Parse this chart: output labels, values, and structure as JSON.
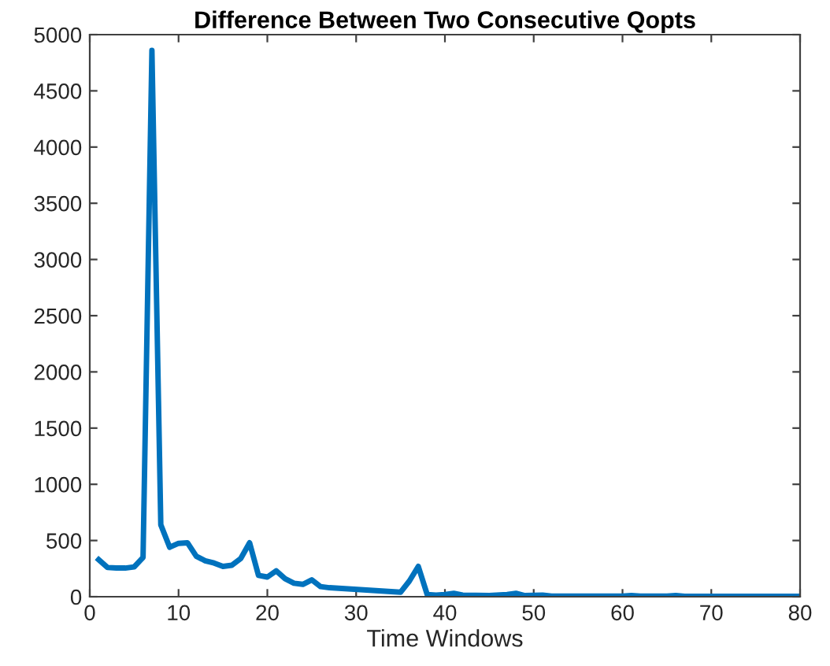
{
  "chart_data": {
    "type": "line",
    "title": "Difference Between Two Consecutive Qopts",
    "xlabel": "Time Windows",
    "series": [
      {
        "color": "#0072bd",
        "x": [
          1,
          2,
          3,
          4,
          5,
          6,
          7,
          8,
          9,
          10,
          11,
          12,
          13,
          14,
          15,
          16,
          17,
          18,
          19,
          20,
          21,
          22,
          23,
          24,
          25,
          26,
          27,
          35,
          36,
          37,
          38,
          39,
          40,
          41,
          42,
          45,
          47,
          48,
          49,
          51,
          52,
          60,
          61,
          62,
          65,
          66,
          67,
          80
        ],
        "values": [
          330,
          260,
          255,
          255,
          265,
          350,
          4860,
          640,
          440,
          475,
          480,
          360,
          320,
          300,
          270,
          280,
          340,
          480,
          190,
          175,
          230,
          160,
          120,
          110,
          150,
          90,
          80,
          40,
          140,
          270,
          20,
          15,
          20,
          30,
          15,
          10,
          20,
          30,
          10,
          15,
          5,
          5,
          10,
          5,
          5,
          10,
          3,
          3
        ]
      }
    ],
    "xlim": [
      0,
      80
    ],
    "xticks": [
      0,
      10,
      20,
      30,
      40,
      50,
      60,
      70,
      80
    ],
    "ylim": [
      0,
      5000
    ],
    "yticks": [
      0,
      500,
      1000,
      1500,
      2000,
      2500,
      3000,
      3500,
      4000,
      4500,
      5000
    ],
    "grid": false,
    "legend": false
  }
}
